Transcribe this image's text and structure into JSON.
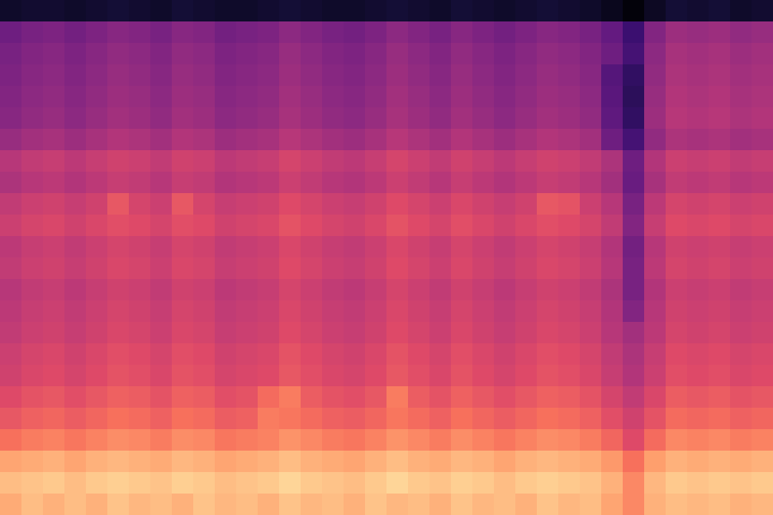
{
  "chart_data": {
    "type": "heatmap",
    "color": "magma",
    "tick_labels": false,
    "grid": false,
    "zlim": [
      -80,
      0
    ],
    "cells": [
      [
        -74,
        -73,
        -73,
        -74,
        -73,
        -72,
        -73,
        -74,
        -72,
        -73,
        -74,
        -74,
        -73,
        -72,
        -73,
        -74,
        -74,
        -73,
        -72,
        -73,
        -74,
        -72,
        -73,
        -74,
        -73,
        -72,
        -73,
        -74,
        -76,
        -79,
        -75,
        -72,
        -73,
        -72,
        -74,
        -73
      ],
      [
        -54,
        -52,
        -51,
        -53,
        -51,
        -49,
        -50,
        -52,
        -49,
        -50,
        -53,
        -52,
        -51,
        -48,
        -50,
        -52,
        -53,
        -51,
        -48,
        -50,
        -52,
        -49,
        -51,
        -53,
        -51,
        -49,
        -50,
        -52,
        -56,
        -64,
        -50,
        -45,
        -46,
        -45,
        -47,
        -46
      ],
      [
        -52,
        -50,
        -49,
        -51,
        -49,
        -47,
        -48,
        -50,
        -47,
        -48,
        -51,
        -50,
        -49,
        -46,
        -48,
        -50,
        -51,
        -49,
        -46,
        -48,
        -50,
        -47,
        -49,
        -51,
        -49,
        -47,
        -48,
        -50,
        -54,
        -62,
        -48,
        -43,
        -44,
        -43,
        -45,
        -44
      ],
      [
        -51,
        -49,
        -48,
        -50,
        -48,
        -46,
        -47,
        -49,
        -46,
        -47,
        -50,
        -49,
        -48,
        -45,
        -47,
        -49,
        -50,
        -48,
        -45,
        -47,
        -49,
        -46,
        -48,
        -50,
        -48,
        -46,
        -47,
        -49,
        -59,
        -66,
        -47,
        -42,
        -43,
        -42,
        -44,
        -43
      ],
      [
        -50,
        -48,
        -47,
        -49,
        -47,
        -45,
        -46,
        -48,
        -45,
        -46,
        -49,
        -48,
        -47,
        -44,
        -46,
        -48,
        -49,
        -47,
        -44,
        -46,
        -48,
        -45,
        -47,
        -49,
        -47,
        -45,
        -46,
        -48,
        -58,
        -67,
        -46,
        -41,
        -42,
        -41,
        -43,
        -42
      ],
      [
        -49,
        -47,
        -46,
        -48,
        -46,
        -44,
        -45,
        -47,
        -44,
        -45,
        -48,
        -47,
        -46,
        -43,
        -45,
        -47,
        -48,
        -46,
        -43,
        -45,
        -47,
        -44,
        -46,
        -48,
        -46,
        -44,
        -45,
        -47,
        -57,
        -66,
        -45,
        -40,
        -41,
        -40,
        -42,
        -41
      ],
      [
        -46,
        -44,
        -43,
        -45,
        -43,
        -41,
        -42,
        -44,
        -41,
        -42,
        -45,
        -44,
        -43,
        -40,
        -42,
        -44,
        -45,
        -43,
        -40,
        -42,
        -44,
        -41,
        -43,
        -45,
        -43,
        -41,
        -42,
        -44,
        -54,
        -62,
        -47,
        -42,
        -43,
        -42,
        -44,
        -43
      ],
      [
        -40,
        -38,
        -37,
        -39,
        -37,
        -35,
        -36,
        -38,
        -35,
        -36,
        -39,
        -38,
        -37,
        -34,
        -36,
        -38,
        -39,
        -37,
        -34,
        -36,
        -38,
        -35,
        -37,
        -39,
        -37,
        -35,
        -36,
        -38,
        -42,
        -54,
        -41,
        -36,
        -37,
        -36,
        -38,
        -37
      ],
      [
        -42,
        -40,
        -39,
        -41,
        -39,
        -37,
        -38,
        -40,
        -37,
        -38,
        -41,
        -40,
        -39,
        -36,
        -38,
        -40,
        -41,
        -39,
        -36,
        -38,
        -40,
        -37,
        -39,
        -41,
        -39,
        -37,
        -38,
        -40,
        -44,
        -55,
        -43,
        -38,
        -39,
        -38,
        -40,
        -39
      ],
      [
        -38,
        -36,
        -35,
        -37,
        -35,
        -29,
        -34,
        -36,
        -29,
        -34,
        -37,
        -36,
        -35,
        -32,
        -34,
        -36,
        -37,
        -35,
        -32,
        -34,
        -36,
        -33,
        -35,
        -37,
        -35,
        -29,
        -30,
        -36,
        -40,
        -52,
        -39,
        -34,
        -35,
        -34,
        -36,
        -35
      ],
      [
        -36,
        -34,
        -33,
        -35,
        -33,
        -31,
        -32,
        -34,
        -31,
        -32,
        -35,
        -34,
        -33,
        -30,
        -32,
        -34,
        -35,
        -33,
        -30,
        -32,
        -34,
        -31,
        -33,
        -35,
        -33,
        -31,
        -32,
        -34,
        -38,
        -50,
        -37,
        -32,
        -33,
        -32,
        -34,
        -33
      ],
      [
        -39,
        -37,
        -36,
        -38,
        -36,
        -34,
        -35,
        -37,
        -34,
        -35,
        -38,
        -37,
        -36,
        -33,
        -35,
        -37,
        -38,
        -36,
        -33,
        -35,
        -37,
        -34,
        -36,
        -38,
        -36,
        -34,
        -35,
        -37,
        -41,
        -53,
        -40,
        -35,
        -36,
        -35,
        -37,
        -36
      ],
      [
        -38,
        -36,
        -35,
        -37,
        -35,
        -33,
        -34,
        -36,
        -33,
        -34,
        -37,
        -36,
        -35,
        -32,
        -34,
        -36,
        -37,
        -35,
        -32,
        -34,
        -36,
        -33,
        -35,
        -37,
        -35,
        -33,
        -34,
        -36,
        -40,
        -52,
        -39,
        -34,
        -35,
        -34,
        -36,
        -35
      ],
      [
        -40,
        -38,
        -37,
        -39,
        -37,
        -35,
        -36,
        -38,
        -35,
        -36,
        -39,
        -38,
        -37,
        -34,
        -36,
        -38,
        -39,
        -37,
        -34,
        -36,
        -38,
        -35,
        -37,
        -39,
        -37,
        -35,
        -36,
        -38,
        -42,
        -52,
        -41,
        -36,
        -37,
        -36,
        -38,
        -37
      ],
      [
        -39,
        -37,
        -36,
        -38,
        -36,
        -34,
        -35,
        -37,
        -34,
        -35,
        -38,
        -37,
        -36,
        -33,
        -35,
        -37,
        -38,
        -36,
        -33,
        -35,
        -37,
        -34,
        -36,
        -38,
        -36,
        -34,
        -35,
        -37,
        -41,
        -50,
        -40,
        -35,
        -36,
        -35,
        -37,
        -36
      ],
      [
        -38,
        -36,
        -35,
        -37,
        -35,
        -33,
        -34,
        -36,
        -33,
        -34,
        -37,
        -36,
        -35,
        -32,
        -34,
        -36,
        -37,
        -35,
        -32,
        -34,
        -36,
        -33,
        -35,
        -37,
        -35,
        -33,
        -34,
        -36,
        -40,
        -44,
        -39,
        -34,
        -35,
        -34,
        -36,
        -35
      ],
      [
        -36,
        -34,
        -33,
        -35,
        -33,
        -31,
        -32,
        -34,
        -31,
        -32,
        -35,
        -34,
        -33,
        -30,
        -32,
        -34,
        -35,
        -33,
        -30,
        -32,
        -34,
        -31,
        -33,
        -35,
        -33,
        -31,
        -32,
        -34,
        -38,
        -42,
        -37,
        -32,
        -33,
        -32,
        -34,
        -33
      ],
      [
        -35,
        -33,
        -32,
        -34,
        -32,
        -30,
        -31,
        -33,
        -30,
        -31,
        -34,
        -33,
        -32,
        -29,
        -31,
        -33,
        -34,
        -32,
        -29,
        -31,
        -33,
        -30,
        -32,
        -34,
        -32,
        -30,
        -31,
        -33,
        -37,
        -41,
        -36,
        -31,
        -32,
        -31,
        -33,
        -32
      ],
      [
        -32,
        -30,
        -29,
        -31,
        -29,
        -27,
        -28,
        -30,
        -27,
        -28,
        -31,
        -30,
        -25,
        -22,
        -28,
        -30,
        -31,
        -29,
        -22,
        -28,
        -30,
        -27,
        -29,
        -31,
        -29,
        -27,
        -28,
        -30,
        -34,
        -38,
        -33,
        -28,
        -29,
        -28,
        -30,
        -29
      ],
      [
        -29,
        -27,
        -26,
        -28,
        -26,
        -24,
        -25,
        -27,
        -24,
        -25,
        -28,
        -27,
        -22,
        -23,
        -25,
        -27,
        -28,
        -26,
        -23,
        -25,
        -27,
        -24,
        -26,
        -28,
        -26,
        -24,
        -25,
        -27,
        -31,
        -35,
        -30,
        -25,
        -26,
        -25,
        -27,
        -26
      ],
      [
        -24,
        -22,
        -21,
        -23,
        -21,
        -19,
        -20,
        -22,
        -19,
        -20,
        -23,
        -22,
        -21,
        -18,
        -20,
        -22,
        -23,
        -21,
        -18,
        -20,
        -22,
        -19,
        -21,
        -23,
        -21,
        -19,
        -20,
        -22,
        -26,
        -32,
        -25,
        -20,
        -21,
        -20,
        -22,
        -21
      ],
      [
        -15,
        -14,
        -13,
        -15,
        -13,
        -12,
        -13,
        -14,
        -12,
        -13,
        -15,
        -14,
        -13,
        -11,
        -13,
        -14,
        -15,
        -13,
        -11,
        -13,
        -14,
        -12,
        -13,
        -15,
        -13,
        -12,
        -13,
        -14,
        -17,
        -24,
        -16,
        -13,
        -14,
        -13,
        -14,
        -13
      ],
      [
        -11,
        -10,
        -9,
        -11,
        -9,
        -8,
        -9,
        -10,
        -8,
        -9,
        -11,
        -10,
        -9,
        -7,
        -9,
        -10,
        -11,
        -9,
        -7,
        -9,
        -10,
        -8,
        -9,
        -11,
        -9,
        -8,
        -9,
        -10,
        -13,
        -20,
        -12,
        -9,
        -10,
        -9,
        -10,
        -9
      ],
      [
        -14,
        -11,
        -13,
        -11,
        -13,
        -10,
        -12,
        -11,
        -13,
        -10,
        -12,
        -11,
        -13,
        -10,
        -12,
        -11,
        -13,
        -10,
        -12,
        -11,
        -13,
        -10,
        -12,
        -11,
        -13,
        -10,
        -12,
        -11,
        -15,
        -20,
        -13,
        -11,
        -12,
        -11,
        -13,
        -12
      ]
    ]
  }
}
